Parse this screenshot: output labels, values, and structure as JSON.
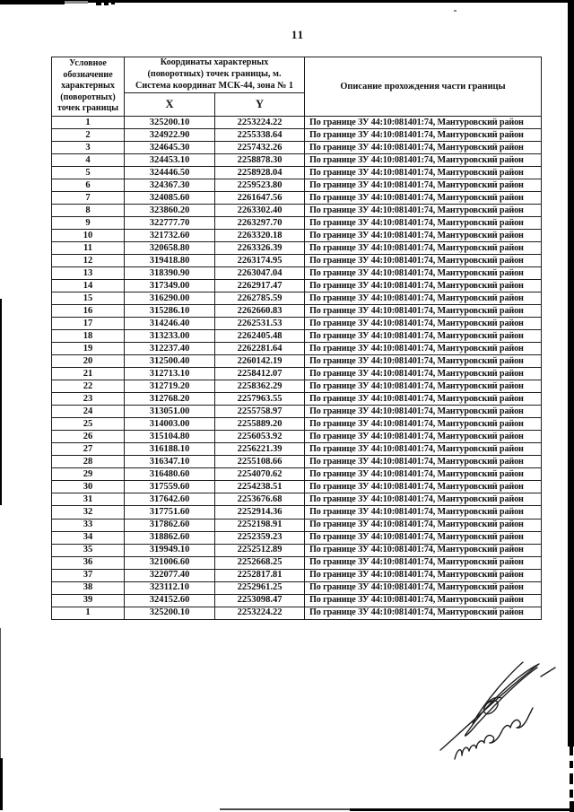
{
  "page": {
    "number": "11"
  },
  "table": {
    "header": {
      "point_label": "Условное\nобозначение\nхарактерных\n(поворотных)\nточек границы",
      "coords_label": "Координаты характерных\n(поворотных) точек границы, м.\nСистема координат МСК-44, зона № 1",
      "x_label": "X",
      "y_label": "Y",
      "description_label": "Описание прохождения части границы"
    },
    "rows": [
      {
        "n": "1",
        "x": "325200.10",
        "y": "2253224.22",
        "desc": "По границе ЗУ 44:10:081401:74, Мантуровский район"
      },
      {
        "n": "2",
        "x": "324922.90",
        "y": "2255338.64",
        "desc": "По границе ЗУ 44:10:081401:74, Мантуровский район"
      },
      {
        "n": "3",
        "x": "324645.30",
        "y": "2257432.26",
        "desc": "По границе ЗУ 44:10:081401:74, Мантуровский район"
      },
      {
        "n": "4",
        "x": "324453.10",
        "y": "2258878.30",
        "desc": "По границе ЗУ 44:10:081401:74, Мантуровский район"
      },
      {
        "n": "5",
        "x": "324446.50",
        "y": "2258928.04",
        "desc": "По границе ЗУ 44:10:081401:74, Мантуровский район"
      },
      {
        "n": "6",
        "x": "324367.30",
        "y": "2259523.80",
        "desc": "По границе ЗУ 44:10:081401:74, Мантуровский район"
      },
      {
        "n": "7",
        "x": "324085.60",
        "y": "2261647.56",
        "desc": "По границе ЗУ 44:10:081401:74, Мантуровский район"
      },
      {
        "n": "8",
        "x": "323860.20",
        "y": "2263302.40",
        "desc": "По границе ЗУ 44:10:081401:74, Мантуровский район"
      },
      {
        "n": "9",
        "x": "322777.70",
        "y": "2263297.70",
        "desc": "По границе ЗУ 44:10:081401:74, Мантуровский район"
      },
      {
        "n": "10",
        "x": "321732.60",
        "y": "2263320.18",
        "desc": "По границе ЗУ 44:10:081401:74, Мантуровский район"
      },
      {
        "n": "11",
        "x": "320658.80",
        "y": "2263326.39",
        "desc": "По границе ЗУ 44:10:081401:74, Мантуровский район"
      },
      {
        "n": "12",
        "x": "319418.80",
        "y": "2263174.95",
        "desc": "По границе ЗУ 44:10:081401:74, Мантуровский район"
      },
      {
        "n": "13",
        "x": "318390.90",
        "y": "2263047.04",
        "desc": "По границе ЗУ 44:10:081401:74, Мантуровский район"
      },
      {
        "n": "14",
        "x": "317349.00",
        "y": "2262917.47",
        "desc": "По границе ЗУ 44:10:081401:74, Мантуровский район"
      },
      {
        "n": "15",
        "x": "316290.00",
        "y": "2262785.59",
        "desc": "По границе ЗУ 44:10:081401:74, Мантуровский район"
      },
      {
        "n": "16",
        "x": "315286.10",
        "y": "2262660.83",
        "desc": "По границе ЗУ 44:10:081401:74, Мантуровский район"
      },
      {
        "n": "17",
        "x": "314246.40",
        "y": "2262531.53",
        "desc": "По границе ЗУ 44:10:081401:74, Мантуровский район"
      },
      {
        "n": "18",
        "x": "313233.00",
        "y": "2262405.48",
        "desc": "По границе ЗУ 44:10:081401:74, Мантуровский район"
      },
      {
        "n": "19",
        "x": "312237.40",
        "y": "2262281.64",
        "desc": "По границе ЗУ 44:10:081401:74, Мантуровский район"
      },
      {
        "n": "20",
        "x": "312500.40",
        "y": "2260142.19",
        "desc": "По границе ЗУ 44:10:081401:74, Мантуровский район"
      },
      {
        "n": "21",
        "x": "312713.10",
        "y": "2258412.07",
        "desc": "По границе ЗУ 44:10:081401:74, Мантуровский район"
      },
      {
        "n": "22",
        "x": "312719.20",
        "y": "2258362.29",
        "desc": "По границе ЗУ 44:10:081401:74, Мантуровский район"
      },
      {
        "n": "23",
        "x": "312768.20",
        "y": "2257963.55",
        "desc": "По границе ЗУ 44:10:081401:74, Мантуровский район"
      },
      {
        "n": "24",
        "x": "313051.00",
        "y": "2255758.97",
        "desc": "По границе ЗУ 44:10:081401:74, Мантуровский район"
      },
      {
        "n": "25",
        "x": "314003.00",
        "y": "2255889.20",
        "desc": "По границе ЗУ 44:10:081401:74, Мантуровский район"
      },
      {
        "n": "26",
        "x": "315104.80",
        "y": "2256053.92",
        "desc": "По границе ЗУ 44:10:081401:74, Мантуровский район"
      },
      {
        "n": "27",
        "x": "316188.10",
        "y": "2256221.39",
        "desc": "По границе ЗУ 44:10:081401:74, Мантуровский район"
      },
      {
        "n": "28",
        "x": "316347.10",
        "y": "2255108.66",
        "desc": "По границе ЗУ 44:10:081401:74, Мантуровский район"
      },
      {
        "n": "29",
        "x": "316480.60",
        "y": "2254070.62",
        "desc": "По границе ЗУ 44:10:081401:74, Мантуровский район"
      },
      {
        "n": "30",
        "x": "317559.60",
        "y": "2254238.51",
        "desc": "По границе ЗУ 44:10:081401:74, Мантуровский район"
      },
      {
        "n": "31",
        "x": "317642.60",
        "y": "2253676.68",
        "desc": "По границе ЗУ 44:10:081401:74, Мантуровский район"
      },
      {
        "n": "32",
        "x": "317751.60",
        "y": "2252914.36",
        "desc": "По границе ЗУ 44:10:081401:74, Мантуровский район"
      },
      {
        "n": "33",
        "x": "317862.60",
        "y": "2252198.91",
        "desc": "По границе ЗУ 44:10:081401:74, Мантуровский район"
      },
      {
        "n": "34",
        "x": "318862.60",
        "y": "2252359.23",
        "desc": "По границе ЗУ 44:10:081401:74, Мантуровский район"
      },
      {
        "n": "35",
        "x": "319949.10",
        "y": "2252512.89",
        "desc": "По границе ЗУ 44:10:081401:74, Мантуровский район"
      },
      {
        "n": "36",
        "x": "321006.60",
        "y": "2252668.25",
        "desc": "По границе ЗУ 44:10:081401:74, Мантуровский район"
      },
      {
        "n": "37",
        "x": "322077.40",
        "y": "2252817.81",
        "desc": "По границе ЗУ 44:10:081401:74, Мантуровский район"
      },
      {
        "n": "38",
        "x": "323112.10",
        "y": "2252961.25",
        "desc": "По границе ЗУ 44:10:081401:74, Мантуровский район"
      },
      {
        "n": "39",
        "x": "324152.60",
        "y": "2253098.47",
        "desc": "По границе ЗУ 44:10:081401:74, Мантуровский район"
      },
      {
        "n": "1",
        "x": "325200.10",
        "y": "2253224.22",
        "desc": "По границе ЗУ 44:10:081401:74, Мантуровский район"
      }
    ]
  }
}
